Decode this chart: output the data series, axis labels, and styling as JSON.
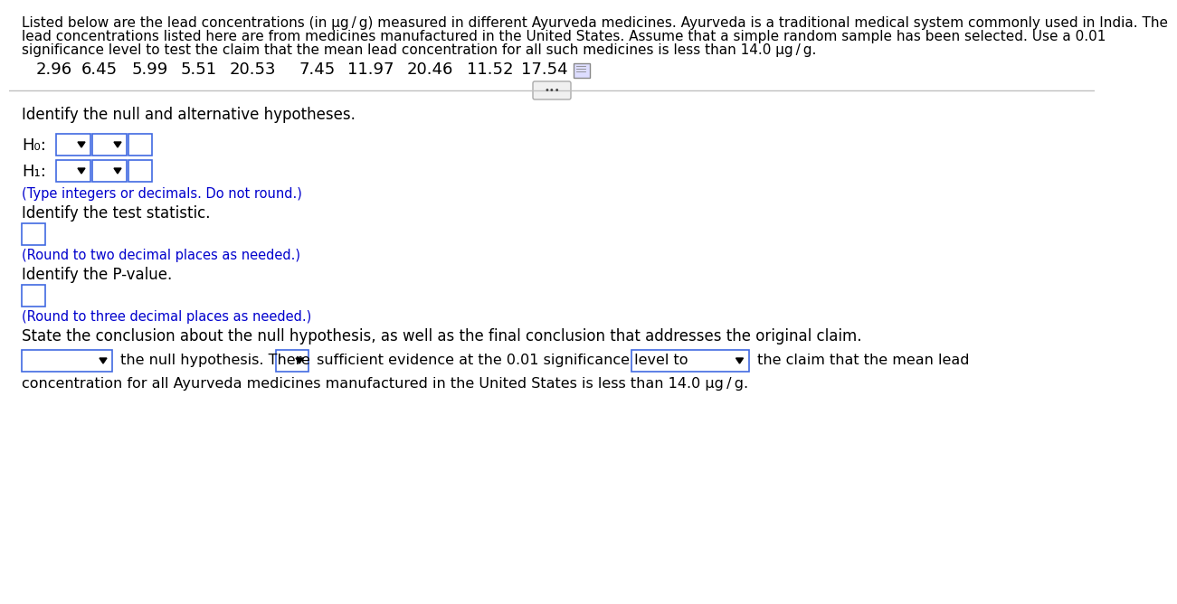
{
  "bg_color": "#ffffff",
  "text_color": "#000000",
  "blue_text_color": "#0000cd",
  "box_color": "#4169e1",
  "para_line1": "Listed below are the lead concentrations (in μg / g) measured in different Ayurveda medicines. Ayurveda is a traditional medical system commonly used in India. The",
  "para_line2": "lead concentrations listed here are from medicines manufactured in the United States. Assume that a simple random sample has been selected. Use a 0.01",
  "para_line3": "significance level to test the claim that the mean lead concentration for all such medicines is less than 14.0 μg / g.",
  "data_values": [
    "2.96",
    "6.45",
    "5.99",
    "5.51",
    "20.53",
    "7.45",
    "11.97",
    "20.46",
    "11.52",
    "17.54"
  ],
  "line1": "Identify the null and alternative hypotheses.",
  "H0_label": "H₀:",
  "H1_label": "H₁:",
  "type_note": "(Type integers or decimals. Do not round.)",
  "line2": "Identify the test statistic.",
  "round2_note": "(Round to two decimal places as needed.)",
  "line3": "Identify the P-value.",
  "round3_note": "(Round to three decimal places as needed.)",
  "line4": "State the conclusion about the null hypothesis, as well as the final conclusion that addresses the original claim.",
  "conc_text1": " the null hypothesis. There ",
  "conc_text2": " sufficient evidence at the 0.01 significance level to ",
  "conc_text3": " the claim that the mean lead",
  "conc_text4": "concentration for all Ayurveda medicines manufactured in the United States is less than 14.0 μg / g.",
  "separator_color": "#c0c0c0",
  "dropdown_bg": "#ffffff",
  "font_size_para": 11.0,
  "font_size_data": 13.0,
  "font_size_body": 12.0,
  "font_size_note": 10.5,
  "font_size_H": 13.0
}
